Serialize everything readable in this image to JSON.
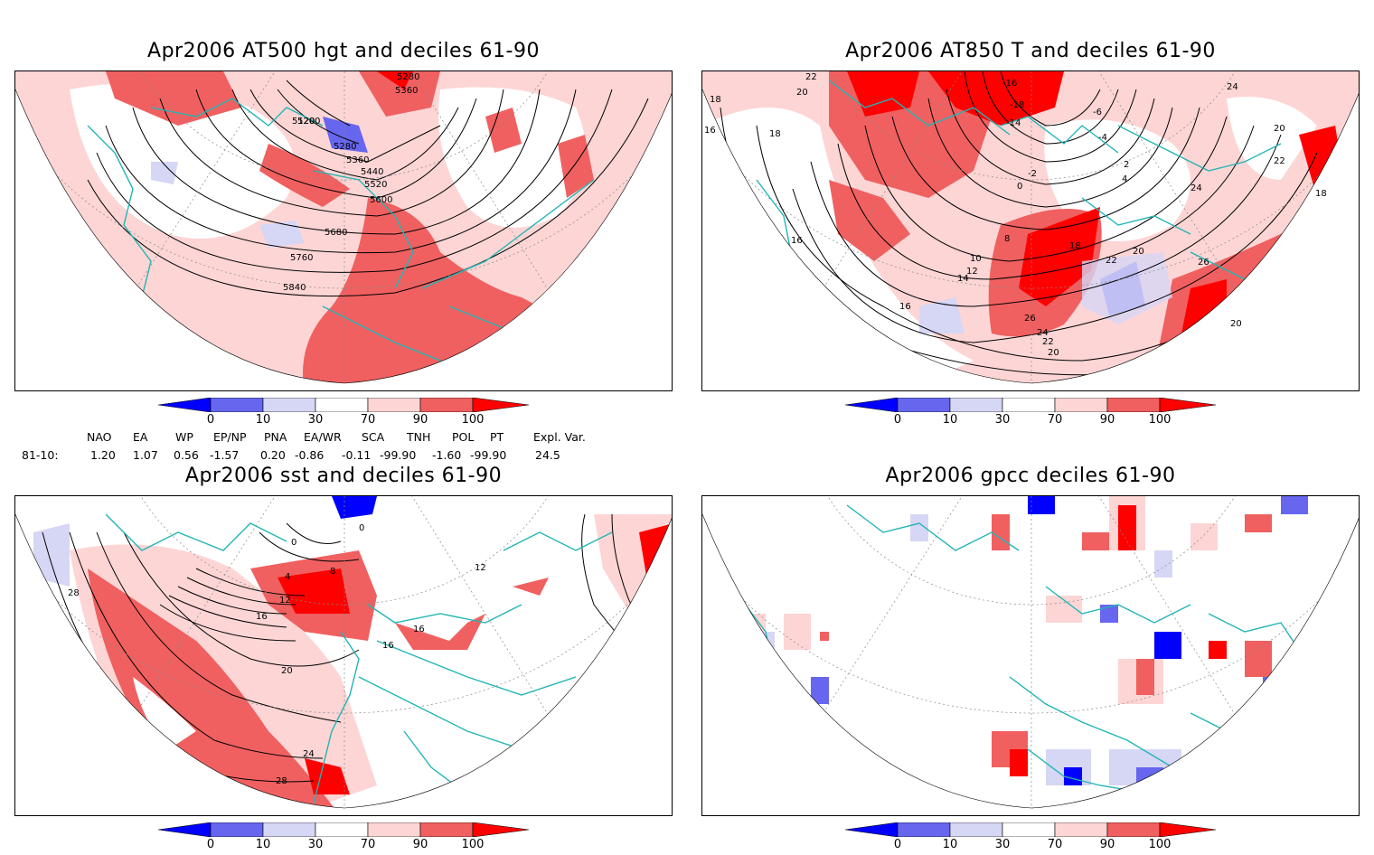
{
  "panels": {
    "hgt": {
      "title": "Apr2006 AT500 hgt and deciles 61-90",
      "contour_labels": [
        "5280",
        "5360",
        "5120",
        "5200",
        "5280",
        "5360",
        "5440",
        "5520",
        "5600",
        "5680",
        "5760",
        "5840"
      ]
    },
    "t850": {
      "title": "Apr2006 AT850 T and deciles 61-90",
      "contour_labels": [
        "22",
        "20",
        "18",
        "16",
        "18",
        "-16",
        "-18",
        "-14",
        "-6",
        "-4",
        "-2",
        "0",
        "2",
        "4",
        "24",
        "22",
        "20",
        "18",
        "16",
        "10",
        "12",
        "14",
        "8",
        "20",
        "22",
        "24",
        "26",
        "26",
        "24",
        "22",
        "20",
        "18",
        "20",
        "16"
      ]
    },
    "sst": {
      "title": "Apr2006 sst and deciles 61-90",
      "contour_labels": [
        "0",
        "0",
        "4",
        "8",
        "12",
        "16",
        "16",
        "16",
        "20",
        "24",
        "28",
        "28",
        "12"
      ]
    },
    "gpcc": {
      "title": "Apr2006 gpcc deciles 61-90"
    }
  },
  "colorbar": {
    "ticks": [
      "0",
      "10",
      "30",
      "70",
      "90",
      "100"
    ],
    "colors": {
      "deep_blue": "#0000ff",
      "mid_blue": "#6666ee",
      "light_blue": "#d6d6f5",
      "white": "#ffffff",
      "light_red": "#fdd5d5",
      "mid_red": "#f06060",
      "deep_red": "#ff0000"
    }
  },
  "indices": {
    "headers": [
      "NAO",
      "EA",
      "WP",
      "EP/NP",
      "PNA",
      "EA/WR",
      "SCA",
      "TNH",
      "POL",
      "PT",
      "Expl. Var."
    ],
    "row_label": "81-10:",
    "values": [
      "1.20",
      "1.07",
      "0.56",
      "-1.57",
      "0.20",
      "-0.86",
      "-0.11",
      "-99.90",
      "-1.60",
      "-99.90",
      "24.5"
    ]
  },
  "map_colors": {
    "coast": "#22b5b5",
    "contour": "#000000",
    "grid": "#888888"
  }
}
